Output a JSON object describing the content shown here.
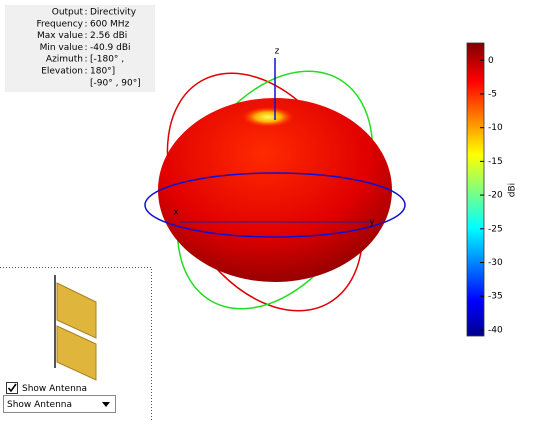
{
  "info_panel": {
    "rows": [
      {
        "label": "Output",
        "value": "Directivity"
      },
      {
        "label": "Frequency",
        "value": "600 MHz"
      },
      {
        "label": "Max value",
        "value": "2.56 dBi"
      },
      {
        "label": "Min value",
        "value": "-40.9 dBi"
      },
      {
        "label": "Azimuth",
        "value": "[-180° ,"
      },
      {
        "label": "Elevation",
        "value": "180°]"
      },
      {
        "value": "[-90° , 90°]"
      }
    ]
  },
  "plot": {
    "z_axis_label": "z",
    "x_axis_label": "x",
    "y_axis_label": "y"
  },
  "colorbar": {
    "lim": [
      -40.9,
      2.56
    ],
    "ticks": [
      0,
      -5,
      -10,
      -15,
      -20,
      -25,
      -30,
      -35,
      -40
    ],
    "label": "dBi"
  },
  "antenna_panel": {
    "checkbox_label": "Show Antenna",
    "checked": true,
    "dropdown_value": "Show Antenna"
  }
}
